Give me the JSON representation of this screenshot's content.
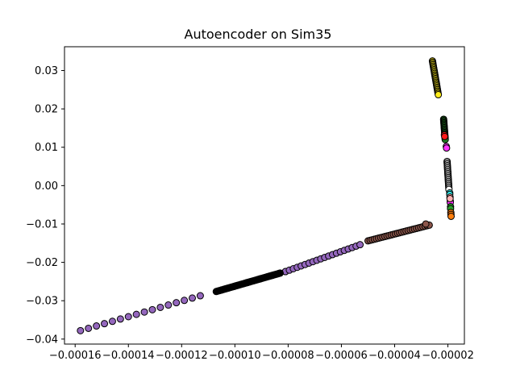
{
  "chart_data": {
    "type": "scatter",
    "title": "Autoencoder on Sim35",
    "xlabel": "",
    "ylabel": "",
    "xlim": [
      -0.000164,
      -1.38e-05
    ],
    "ylim": [
      -0.0413,
      0.0362
    ],
    "grid": false,
    "x_tick_values": [
      -0.00016,
      -0.00014,
      -0.00012,
      -0.0001,
      -8e-05,
      -6e-05,
      -4e-05,
      -2e-05
    ],
    "x_tick_labels": [
      "−0.00016",
      "−0.00014",
      "−0.00012",
      "−0.00010",
      "−0.00008",
      "−0.00006",
      "−0.00004",
      "−0.00002"
    ],
    "y_tick_values": [
      0.03,
      0.02,
      0.01,
      0.0,
      -0.01,
      -0.02,
      -0.03,
      -0.04
    ],
    "y_tick_labels": [
      "0.03",
      "0.02",
      "0.01",
      "0.00",
      "−0.01",
      "−0.02",
      "−0.03",
      "−0.04"
    ],
    "series": [
      {
        "color": "#9467bd",
        "segments": [
          {
            "from": [
              -0.000158,
              -0.0378
            ],
            "to": [
              -0.000113,
              -0.0287
            ],
            "count": 16
          },
          {
            "from": [
              -0.000105,
              -0.0272
            ],
            "to": [
              -8.1e-05,
              -0.0224
            ],
            "count": 6
          },
          {
            "from": [
              -8.1e-05,
              -0.0224
            ],
            "to": [
              -5.3e-05,
              -0.0154
            ],
            "count": 20
          }
        ]
      },
      {
        "color": "#000000",
        "segments": [
          {
            "from": [
              -0.000107,
              -0.0276
            ],
            "to": [
              -8.3e-05,
              -0.0228
            ],
            "count": 60
          }
        ]
      },
      {
        "color": "#8c564b",
        "segments": [
          {
            "from": [
              -5e-05,
              -0.0144
            ],
            "to": [
              -2.7e-05,
              -0.0103
            ],
            "count": 30
          }
        ]
      },
      {
        "color": "#ffec1a",
        "segments": [
          {
            "from": [
              -2.58e-05,
              0.0325
            ],
            "to": [
              -2.36e-05,
              0.0237
            ],
            "count": 28
          }
        ]
      },
      {
        "color": "#1f7a1f",
        "segments": [
          {
            "from": [
              -2.16e-05,
              0.0173
            ],
            "to": [
              -2.1e-05,
              0.012
            ],
            "count": 18
          }
        ]
      },
      {
        "color": "#ff1a1a",
        "segments": [
          {
            "from": [
              -2.13e-05,
              0.0132
            ],
            "to": [
              -2.12e-05,
              0.0128
            ],
            "count": 2
          }
        ]
      },
      {
        "color": "#ff33ff",
        "segments": [
          {
            "from": [
              -2.06e-05,
              0.0102
            ],
            "to": [
              -2.05e-05,
              0.0098
            ],
            "count": 2
          },
          {
            "from": [
              -1.91e-05,
              -0.004
            ],
            "to": [
              -1.91e-05,
              -0.0044
            ],
            "count": 2
          }
        ]
      },
      {
        "color": "#ffffff",
        "segments": [
          {
            "from": [
              -2.03e-05,
              0.0063
            ],
            "to": [
              -1.96e-05,
              -0.001
            ],
            "count": 22
          }
        ]
      },
      {
        "color": "#33e6e6",
        "segments": [
          {
            "from": [
              -1.93e-05,
              -0.0019
            ],
            "to": [
              -1.93e-05,
              -0.0023
            ],
            "count": 2
          }
        ]
      },
      {
        "color": "#ffb3b3",
        "segments": [
          {
            "from": [
              -1.92e-05,
              -0.003
            ],
            "to": [
              -1.92e-05,
              -0.0034
            ],
            "count": 2
          }
        ]
      },
      {
        "color": "#2ca02c",
        "segments": [
          {
            "from": [
              -1.9e-05,
              -0.0055
            ],
            "to": [
              -1.9e-05,
              -0.006
            ],
            "count": 2
          }
        ]
      },
      {
        "color": "#ff7f0e",
        "segments": [
          {
            "from": [
              -1.89e-05,
              -0.007
            ],
            "to": [
              -1.88e-05,
              -0.008
            ],
            "count": 3
          }
        ]
      }
    ],
    "points": [
      {
        "x": -2.83e-05,
        "y": -0.01,
        "color": "#8c564b"
      }
    ]
  }
}
